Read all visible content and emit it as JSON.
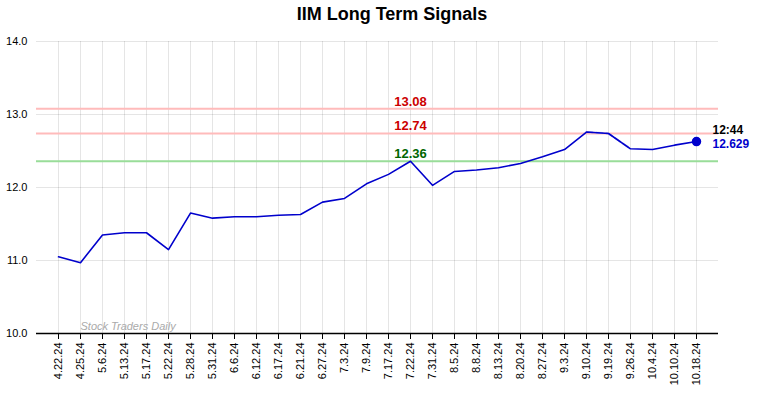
{
  "chart_data": {
    "type": "line",
    "title": "IIM Long Term Signals",
    "categories": [
      "4.22.24",
      "4.25.24",
      "5.6.24",
      "5.13.24",
      "5.17.24",
      "5.22.24",
      "5.28.24",
      "5.31.24",
      "6.6.24",
      "6.12.24",
      "6.17.24",
      "6.21.24",
      "6.27.24",
      "7.3.24",
      "7.9.24",
      "7.17.24",
      "7.22.24",
      "7.31.24",
      "8.5.24",
      "8.8.24",
      "8.13.24",
      "8.20.24",
      "8.27.24",
      "9.3.24",
      "9.10.24",
      "9.19.24",
      "9.26.24",
      "10.4.24",
      "10.10.24",
      "10.18.24"
    ],
    "series": [
      {
        "color": "#aaaaee",
        "line_style": "dashed",
        "values": [
          null,
          null,
          null,
          null,
          null,
          null,
          null,
          null,
          null,
          null,
          null,
          null,
          null,
          null,
          null,
          null,
          null,
          null,
          null,
          null,
          null,
          null,
          null,
          null,
          12.76,
          12.74,
          12.53,
          null,
          null,
          null
        ]
      },
      {
        "color": "#0000cc",
        "line_style": "solid",
        "values": [
          11.05,
          10.97,
          11.35,
          11.38,
          11.38,
          11.15,
          11.65,
          11.58,
          11.6,
          11.6,
          11.62,
          11.63,
          11.8,
          11.85,
          12.05,
          12.18,
          12.36,
          12.03,
          12.22,
          12.24,
          12.27,
          12.33,
          12.42,
          12.52,
          12.76,
          12.74,
          12.53,
          12.52,
          12.58,
          12.629
        ]
      },
      {
        "type": "scatter",
        "marker": "o",
        "color": "#0000cc",
        "values": [
          null,
          null,
          null,
          null,
          null,
          null,
          null,
          null,
          null,
          null,
          null,
          null,
          null,
          null,
          null,
          null,
          null,
          null,
          null,
          null,
          null,
          null,
          null,
          null,
          null,
          null,
          null,
          null,
          null,
          12.629
        ]
      }
    ],
    "ylim": [
      10,
      14
    ],
    "yticks": [
      10,
      11,
      12,
      13,
      14
    ],
    "grid": true,
    "hlines": [
      {
        "value": 13.08,
        "color": "#ffbbbb",
        "label": "13.08",
        "label_color": "#cc0000",
        "label_x": "7.22.24"
      },
      {
        "value": 12.74,
        "color": "#ffbbbb",
        "label": "12.74",
        "label_color": "#cc0000",
        "label_x": "7.22.24"
      },
      {
        "value": 12.36,
        "color": "#99dd99",
        "label": "12.36",
        "label_color": "#006600",
        "label_x": "7.22.24"
      }
    ],
    "annotations": [
      {
        "text": "12:44",
        "x": "10.18.24",
        "y": 12.629,
        "color": "#000000"
      },
      {
        "text": "12.629",
        "x": "10.18.24",
        "y": 12.629,
        "color": "#0000cc"
      },
      {
        "text": "Stock Traders Daily",
        "x": "4.25.24",
        "y": 10.05,
        "color": "#aaaaaa",
        "style": "italic"
      }
    ]
  }
}
